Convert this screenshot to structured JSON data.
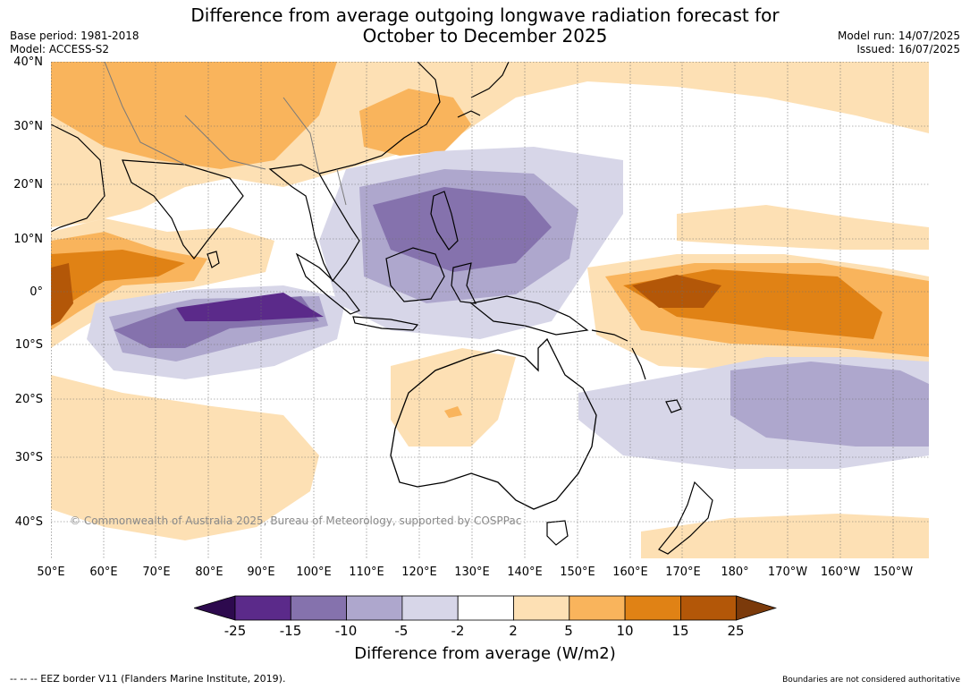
{
  "title_line1": "Difference from average outgoing longwave radiation forecast for",
  "title_line2": "October to December 2025",
  "base_period": "Base period: 1981-2018",
  "model": "Model: ACCESS-S2",
  "model_run": "Model run: 14/07/2025",
  "issued": "Issued: 16/07/2025",
  "lat_labels": [
    "40°N",
    "30°N",
    "20°N",
    "10°N",
    "0°",
    "10°S",
    "20°S",
    "30°S",
    "40°S"
  ],
  "lon_labels": [
    "50°E",
    "60°E",
    "70°E",
    "80°E",
    "90°E",
    "100°E",
    "110°E",
    "120°E",
    "130°E",
    "140°E",
    "150°E",
    "160°E",
    "170°E",
    "180°",
    "170°W",
    "160°W",
    "150°W"
  ],
  "copyright": "© Commonwealth of Australia 2025, Bureau of Meteorology, supported by COSPPac",
  "colorbar": {
    "ticks": [
      "-25",
      "-15",
      "-10",
      "-5",
      "-2",
      "2",
      "5",
      "10",
      "15",
      "25"
    ],
    "colors": [
      "#2d0a4e",
      "#5b2a8a",
      "#8572ad",
      "#aea7cd",
      "#d7d6e8",
      "#ffffff",
      "#fde0b4",
      "#f9b45c",
      "#e08215",
      "#b35708",
      "#7b3a0b"
    ],
    "title": "Difference from average (W/m2)"
  },
  "footer_left": "-- -- -- EEZ border V11 (Flanders Marine Institute, 2019).",
  "footer_right": "Boundaries are not considered authoritative"
}
